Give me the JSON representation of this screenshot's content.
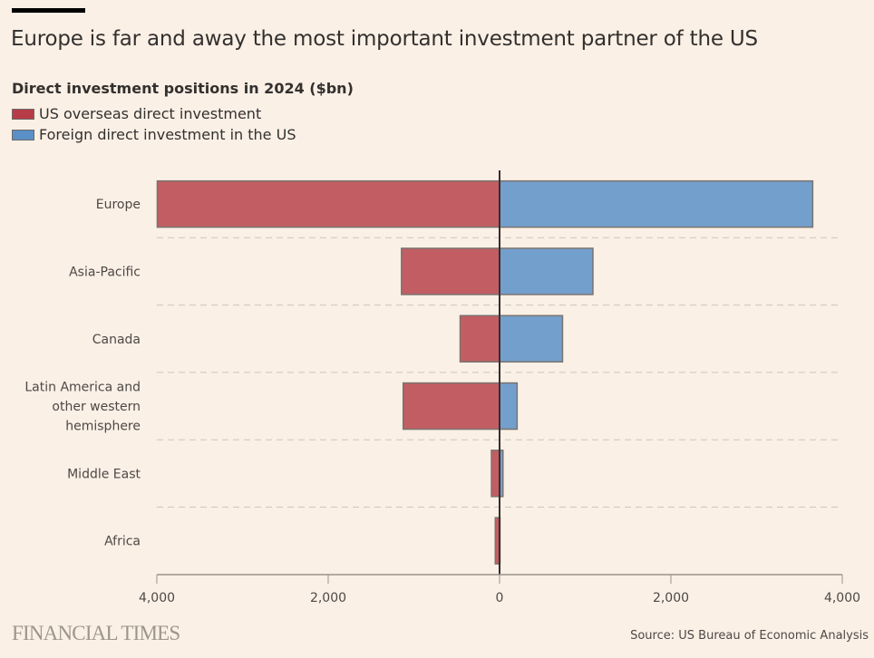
{
  "header": {
    "title": "Europe is far and away the most important investment partner of the US",
    "subtitle": "Direct investment positions in 2024 ($bn)"
  },
  "footer": {
    "brand": "FINANCIAL TIMES",
    "source": "Source: US Bureau of Economic Analysis"
  },
  "colors": {
    "background": "#fbf0e6",
    "us_overseas": "#c25e63",
    "us_overseas_legend": "#b83c47",
    "fdi_in_us": "#739fcc",
    "fdi_in_us_legend": "#5a8fc8",
    "bar_outline": "#7a736f"
  },
  "chart_data": {
    "type": "bar",
    "orientation": "horizontal-diverging",
    "title": "Europe is far and away the most important investment partner of the US",
    "subtitle": "Direct investment positions in 2024 ($bn)",
    "categories": [
      "Europe",
      "Asia-Pacific",
      "Canada",
      "Latin America and other western hemisphere",
      "Middle East",
      "Africa"
    ],
    "category_label_lines": [
      [
        "Europe"
      ],
      [
        "Asia-Pacific"
      ],
      [
        "Canada"
      ],
      [
        "Latin America and",
        "other western",
        "hemisphere"
      ],
      [
        "Middle East"
      ],
      [
        "Africa"
      ]
    ],
    "series": [
      {
        "name": "US overseas direct investment",
        "direction": "left",
        "values": [
          3995,
          1145,
          460,
          1125,
          95,
          50
        ]
      },
      {
        "name": "Foreign direct investment in the US",
        "direction": "right",
        "values": [
          3655,
          1090,
          735,
          205,
          40,
          5
        ]
      }
    ],
    "legend": [
      "US overseas direct investment",
      "Foreign direct investment in the US"
    ],
    "legend_position": "top-left",
    "xlim": [
      -4000,
      4000
    ],
    "xticks": [
      -4000,
      -2000,
      0,
      2000,
      4000
    ],
    "xtick_labels": [
      "4,000",
      "2,000",
      "0",
      "2,000",
      "4,000"
    ],
    "xlabel": "",
    "ylabel": "",
    "grid": "dashed horizontal separators between categories"
  }
}
